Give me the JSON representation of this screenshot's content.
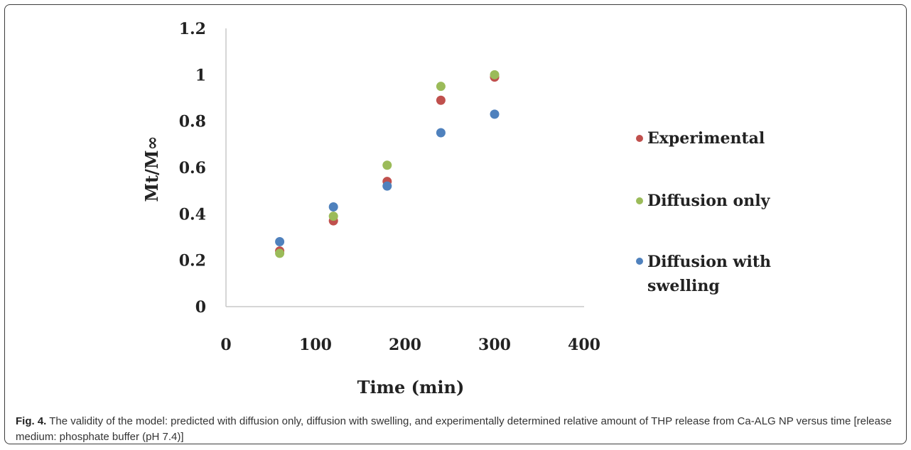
{
  "figure": {
    "caption_label": "Fig. 4.",
    "caption_text": " The validity of the model: predicted with diffusion only, diffusion with swelling, and experimentally determined relative amount of THP release from Ca-ALG NP versus time [release medium: phosphate buffer (pH 7.4)]"
  },
  "chart_data": {
    "type": "scatter",
    "xlabel": "Time (min)",
    "ylabel": "Mt/M∞",
    "xlim": [
      0,
      400
    ],
    "ylim": [
      0,
      1.2
    ],
    "x_ticks": [
      "0",
      "100",
      "200",
      "300",
      "400"
    ],
    "y_ticks": [
      "0",
      "0.2",
      "0.4",
      "0.6",
      "0.8",
      "1",
      "1.2"
    ],
    "grid": false,
    "legend_position": "right",
    "series": [
      {
        "name": "Experimental",
        "color": "#c0504d",
        "x": [
          60,
          120,
          180,
          240,
          300
        ],
        "y": [
          0.24,
          0.37,
          0.54,
          0.89,
          0.99
        ]
      },
      {
        "name": "Diffusion only",
        "color": "#9bbb59",
        "x": [
          60,
          120,
          180,
          240,
          300
        ],
        "y": [
          0.23,
          0.39,
          0.61,
          0.95,
          1.0
        ]
      },
      {
        "name": "Diffusion with swelling",
        "color": "#4f81bd",
        "x": [
          60,
          120,
          180,
          240,
          300
        ],
        "y": [
          0.28,
          0.43,
          0.52,
          0.75,
          0.83
        ]
      }
    ]
  }
}
